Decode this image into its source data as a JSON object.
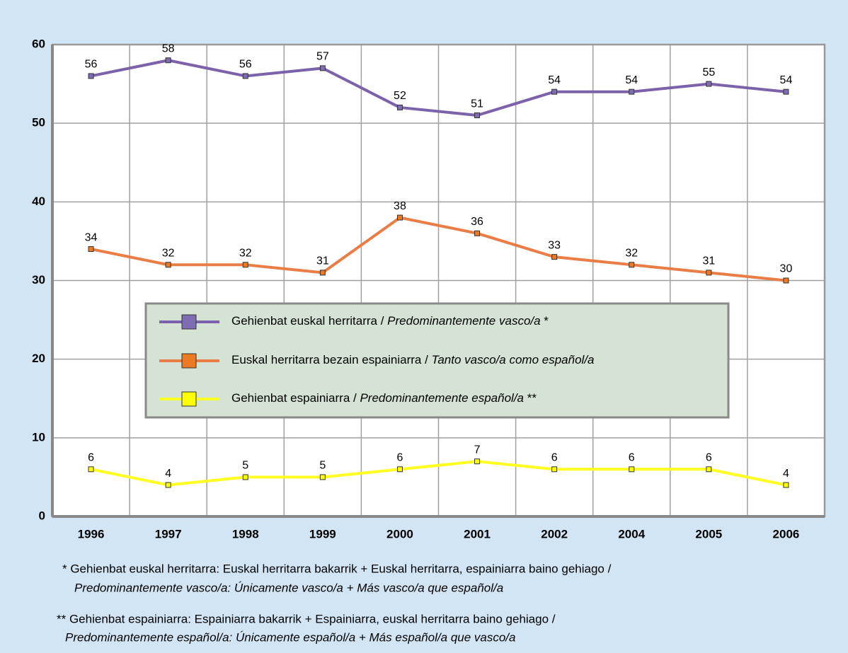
{
  "chart_data": {
    "type": "line",
    "categories": [
      "1996",
      "1997",
      "1998",
      "1999",
      "2000",
      "2001",
      "2002",
      "2004",
      "2005",
      "2006"
    ],
    "series": [
      {
        "name": "Gehienbat euskal herritarra / Predominantemente vasco/a *",
        "color": "#7b62aa",
        "marker": "#7f6db3",
        "values": [
          56,
          58,
          56,
          57,
          52,
          51,
          54,
          54,
          55,
          54
        ]
      },
      {
        "name": "Euskal herritarra bezain espainiarra / Tanto vasco/a como español/a",
        "color": "#ea7d45",
        "marker": "#ec7a22",
        "values": [
          34,
          32,
          32,
          31,
          38,
          36,
          33,
          32,
          31,
          30
        ]
      },
      {
        "name": "Gehienbat espainiarra / Predominantemente español/a **",
        "color": "#ffff22",
        "marker": "#ffff00",
        "values": [
          6,
          4,
          5,
          5,
          6,
          7,
          6,
          6,
          6,
          4
        ]
      }
    ],
    "ylim": [
      0,
      60
    ],
    "yticks": [
      0,
      10,
      20,
      30,
      40,
      50,
      60
    ],
    "grid": true,
    "footnotes": [
      [
        "* Gehienbat euskal herritarra: Euskal herritarra bakarrik + Euskal herritarra, espainiarra baino gehiago /",
        "Predominantemente vasco/a: Únicamente vasco/a + Más vasco/a que español/a"
      ],
      [
        "** Gehienbat espainiarra: Espainiarra bakarrik + Espainiarra, euskal herritarra baino gehiago /",
        "Predominantemente español/a: Únicamente español/a + Más español/a que vasco/a"
      ]
    ]
  }
}
